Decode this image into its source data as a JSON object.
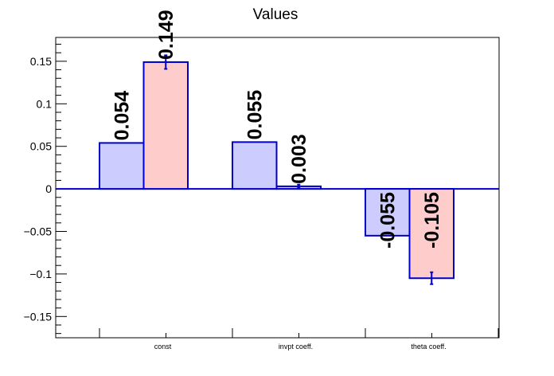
{
  "chart_data": {
    "type": "bar",
    "title": "Values",
    "categories": [
      "const",
      "invpt coeff.",
      "theta coeff."
    ],
    "series": [
      {
        "values": [
          0.054,
          0.055,
          -0.055
        ],
        "errors": [
          0.0,
          0.0,
          0.0
        ],
        "labels": [
          "0.054",
          "0.055",
          "-0.055"
        ]
      },
      {
        "values": [
          0.149,
          0.003,
          -0.105
        ],
        "errors": [
          0.008,
          0.002,
          0.007
        ],
        "labels": [
          "0.149",
          "0.003",
          "-0.105"
        ]
      }
    ],
    "ylim": [
      -0.175,
      0.178
    ],
    "yticks": [
      0.15,
      0.1,
      0.05,
      0,
      -0.05,
      -0.1,
      -0.15
    ],
    "ytick_labels": [
      "0.15",
      "0.1",
      "0.05",
      "0",
      "−0.05",
      "−0.1",
      "−0.15"
    ],
    "xlabel": "",
    "ylabel": "",
    "grid": false,
    "colors": {
      "series_fill": [
        "#ccccff",
        "#ffcccc"
      ],
      "bar_stroke": "#0000cc",
      "zero_line": "#0000cc",
      "axis": "#000000"
    }
  }
}
